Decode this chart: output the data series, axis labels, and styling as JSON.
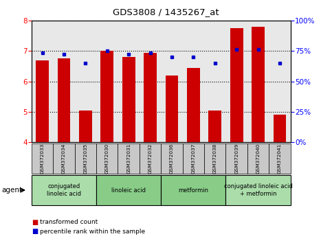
{
  "title": "GDS3808 / 1435267_at",
  "samples": [
    "GSM372033",
    "GSM372034",
    "GSM372035",
    "GSM372030",
    "GSM372031",
    "GSM372032",
    "GSM372036",
    "GSM372037",
    "GSM372038",
    "GSM372039",
    "GSM372040",
    "GSM372041"
  ],
  "bar_values": [
    6.7,
    6.75,
    5.05,
    7.0,
    6.8,
    6.95,
    6.2,
    6.45,
    5.05,
    7.75,
    7.8,
    4.9
  ],
  "dot_values": [
    6.95,
    6.9,
    6.6,
    7.0,
    6.9,
    6.95,
    6.8,
    6.8,
    6.6,
    7.05,
    7.05,
    6.6
  ],
  "bar_color": "#cc0000",
  "dot_color": "#0000cc",
  "ylim_left": [
    4,
    8
  ],
  "ylim_right": [
    0,
    100
  ],
  "yticks_left": [
    4,
    5,
    6,
    7,
    8
  ],
  "yticks_right": [
    0,
    25,
    50,
    75,
    100
  ],
  "ytick_labels_right": [
    "0%",
    "25%",
    "50%",
    "75%",
    "100%"
  ],
  "agent_groups": [
    {
      "label": "conjugated\nlinoleic acid",
      "start": 0,
      "end": 3,
      "color": "#aaddaa"
    },
    {
      "label": "linoleic acid",
      "start": 3,
      "end": 6,
      "color": "#88cc88"
    },
    {
      "label": "metformin",
      "start": 6,
      "end": 9,
      "color": "#88cc88"
    },
    {
      "label": "conjugated linoleic acid\n+ metformin",
      "start": 9,
      "end": 12,
      "color": "#aaddaa"
    }
  ],
  "legend_bar_label": "transformed count",
  "legend_dot_label": "percentile rank within the sample",
  "agent_label": "agent",
  "bar_bottom": 4.0,
  "background_plot": "#e8e8e8",
  "background_header": "#c8c8c8"
}
